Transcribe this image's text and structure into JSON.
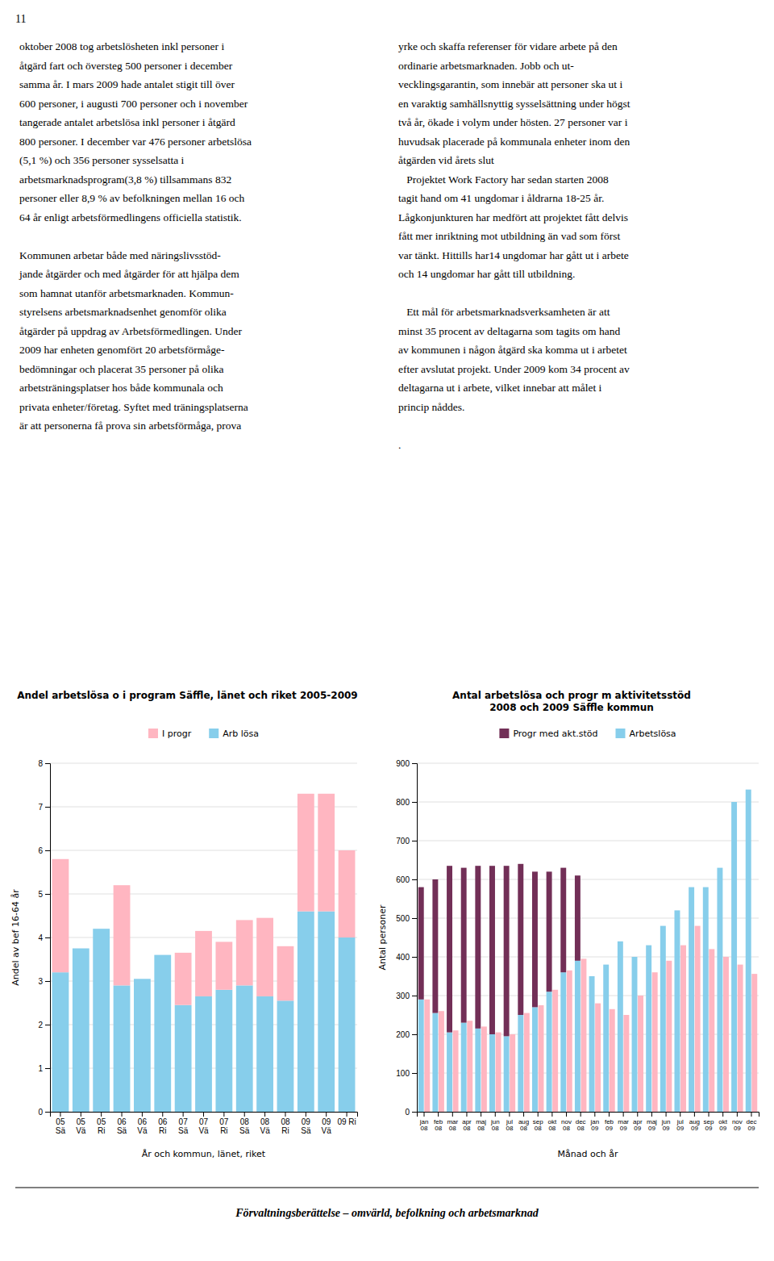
{
  "page_number": "11",
  "footer_text": "Förvaltningsberättelse – omvärld, befolkning och arbetsmarknad",
  "left_text": [
    [
      "oktober 2008 tog arbetslösheten inkl personer i",
      "åtgärd fart och översteg 500 personer i december",
      "samma år. I mars 2009 hade antalet stigit till över",
      "600 personer, i augusti 700 personer och i november",
      "tangerade antalet arbetslösa inkl personer i åtgärd",
      "800 personer. I december var 476 personer arbetslösa",
      "(5,1 %) och 356 personer sysselsatta i",
      "arbetsmarknadsprogram(3,8 %) tillsammans 832",
      "personer eller 8,9 % av befolkningen mellan 16 och",
      "64 år enligt arbetsförmedlingens officiella statistik."
    ],
    [
      "Kommunen arbetar både med näringslivsstöd-",
      "jande åtgärder och med åtgärder för att hjälpa dem",
      "som hamnat utanför arbetsmarknaden. Kommun-",
      "styrelsens arbetsmarknadsenhet genomför olika",
      "åtgärder på uppdrag av Arbetsförmedlingen. Under",
      "2009 har enheten genomfört 20 arbetsförmåge-",
      "bedömningar och placerat 35 personer på olika",
      "arbetsträningsplatser hos både kommunala och",
      "privata enheter/företag. Syftet med träningsplatserna",
      "är att personerna få prova sin arbetsförmåga, prova"
    ]
  ],
  "right_text": [
    [
      "yrke och skaffa referenser för vidare arbete på den",
      "ordinarie arbetsmarknaden. Jobb och ut-",
      "vecklingsgarantin, som innebär att personer ska ut i",
      "en varaktig samhällsnyttig sysselsättning under högst",
      "två år, ökade i volym under hösten. 27 personer var i",
      "huvudsak placerade på kommunala enheter inom den",
      "åtgärden vid årets slut",
      "   Projektet Work Factory har sedan starten 2008",
      "tagit hand om 41 ungdomar i åldrarna 18-25 år.",
      "Lågkonjunkturen har medfört att projektet fått delvis",
      "fått mer inriktning mot utbildning än vad som först",
      "var tänkt. Hittills har14 ungdomar har gått ut i arbete",
      "och 14 ungdomar har gått till utbildning."
    ],
    [
      "   Ett mål för arbetsmarknadsverksamheten är att",
      "minst 35 procent av deltagarna som tagits om hand",
      "av kommunen i någon åtgärd ska komma ut i arbetet",
      "efter avslutat projekt. Under 2009 kom 34 procent av",
      "deltagarna ut i arbete, vilket innebar att målet i",
      "princip nåddes."
    ],
    [
      "."
    ]
  ],
  "chart_data": [
    {
      "type": "bar",
      "title": "Andel arbetslösa o i program Säffle, länet och riket 2005-2009",
      "xlabel": "År och kommun, länet, riket",
      "ylabel": "Andel av bef 16-64 år",
      "categories": [
        "05\nSä",
        "05\nVä",
        "05\nRi",
        "06\nSä",
        "06\nVä",
        "06\nRi",
        "07\nSä",
        "07\nVä",
        "07\nRi",
        "08\nSä",
        "08\nVä",
        "08\nRi",
        "09\nSä",
        "09\nVä",
        "09 Ri"
      ],
      "series": [
        {
          "name": "Arb lösa",
          "color": "#87CEEB",
          "values": [
            3.2,
            3.75,
            4.2,
            2.9,
            3.05,
            3.6,
            2.45,
            2.65,
            2.8,
            2.9,
            2.65,
            2.55,
            4.6,
            4.6,
            4.0
          ]
        },
        {
          "name": "I progr",
          "color": "#FFB6C1",
          "values": [
            2.6,
            0.0,
            0.0,
            2.3,
            0.0,
            0.0,
            1.2,
            1.5,
            1.1,
            1.5,
            1.8,
            1.25,
            2.7,
            2.7,
            2.0
          ]
        }
      ],
      "stacked": true,
      "ylim": [
        0,
        8
      ],
      "yticks": [
        0,
        1,
        2,
        3,
        4,
        5,
        6,
        7,
        8
      ],
      "grid": true,
      "legend": "top"
    },
    {
      "type": "bar",
      "title": "Antal arbetslösa och progr m aktivitetsstöd\n2008 och 2009 Säffle kommun",
      "xlabel": "Månad och år",
      "ylabel": "Antal personer",
      "categories": [
        "jan\n08",
        "feb\n08",
        "mar\n08",
        "apr\n08",
        "maj\n08",
        "jun\n08",
        "jul\n08",
        "aug\n08",
        "sep\n08",
        "okt\n08",
        "nov\n08",
        "dec\n08",
        "jan\n09",
        "feb\n09",
        "mar\n09",
        "apr\n09",
        "maj\n09",
        "jun\n09",
        "jul\n09",
        "aug\n09",
        "sep\n09",
        "okt\n09",
        "nov\n09",
        "dec\n09"
      ],
      "series": [
        {
          "name": "Arbetslösa",
          "color": "#87CEEB",
          "stacked": true,
          "values": [
            290,
            255,
            205,
            230,
            215,
            200,
            195,
            250,
            270,
            310,
            360,
            390,
            350,
            380,
            440,
            400,
            430,
            480,
            520,
            580,
            580,
            630,
            800,
            832
          ]
        },
        {
          "name": "Progr med akt.stöd",
          "color": "#722F57",
          "stacked": true,
          "values": [
            290,
            345,
            430,
            400,
            420,
            435,
            440,
            390,
            350,
            310,
            270,
            220,
            0,
            0,
            0,
            0,
            0,
            0,
            0,
            0,
            0,
            0,
            0,
            0
          ]
        },
        {
          "color": "#FFB6C1",
          "stacked": false,
          "values": [
            290,
            260,
            210,
            235,
            220,
            205,
            200,
            255,
            275,
            315,
            365,
            395,
            280,
            265,
            250,
            300,
            360,
            390,
            430,
            480,
            420,
            400,
            380,
            356
          ]
        }
      ],
      "ylim": [
        0,
        900
      ],
      "yticks": [
        0,
        100,
        200,
        300,
        400,
        500,
        600,
        700,
        800,
        900
      ],
      "grid": true,
      "legend": "top"
    }
  ]
}
